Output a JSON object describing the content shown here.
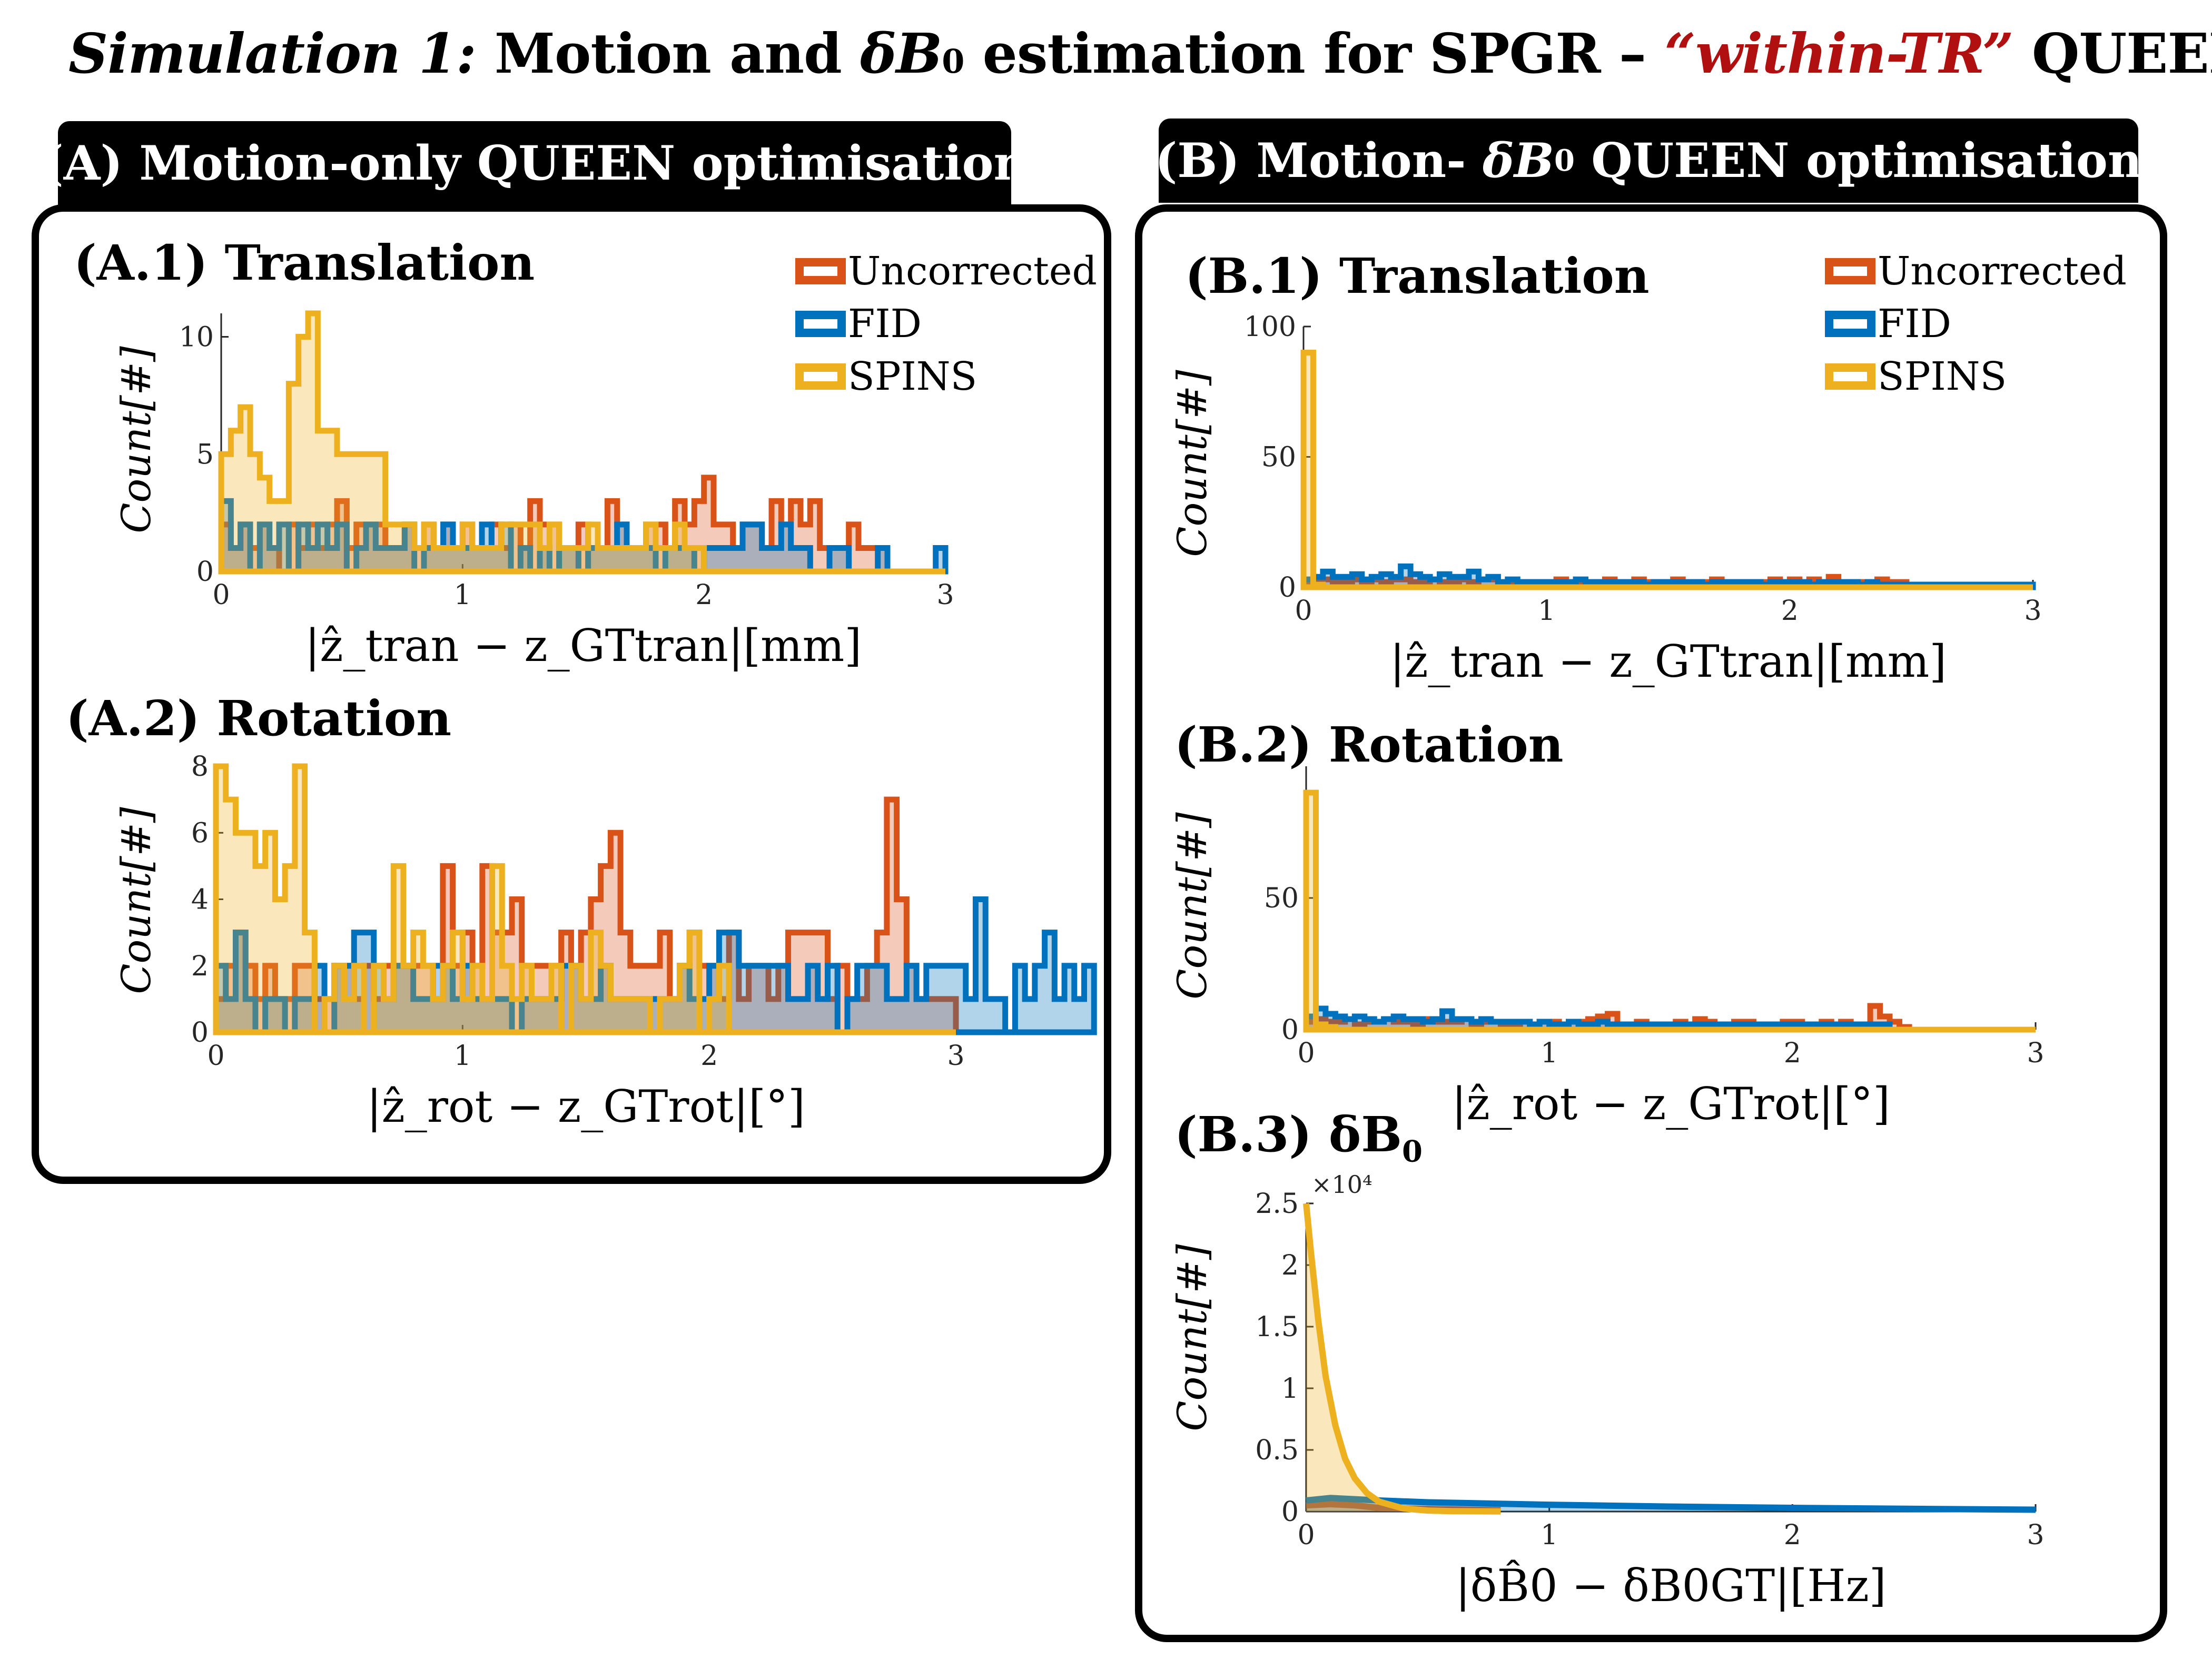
{
  "title": {
    "part1": "Simulation 1:",
    "part2": " Motion and ",
    "delta_b": "δB",
    "sub0": "0",
    "part3": " estimation for SPGR – ",
    "red": "“within-TR”",
    "part4": " QUEEN"
  },
  "tabs": {
    "a": "(A) Motion-only QUEEN optimisation",
    "b_pre": "(B) Motion- ",
    "b_db": "δB",
    "b_sub": "0",
    "b_post": " QUEEN optimisation"
  },
  "subtitles": {
    "a1": "(A.1) Translation",
    "a2": "(A.2) Rotation",
    "b1": "(B.1) Translation",
    "b2": "(B.2) Rotation",
    "b3_pre": "(B.3) δB",
    "b3_sub": "0"
  },
  "legend": [
    {
      "name": "Uncorrected",
      "color": "#d95319"
    },
    {
      "name": "FID",
      "color": "#0072bd"
    },
    {
      "name": "SPINS",
      "color": "#edb120"
    }
  ],
  "axis_labels": {
    "y_count": "Count[#]",
    "x_tran": "|ẑ_tran − z_GTtran|[mm]",
    "x_rot": "|ẑ_rot − z_GTrot|[°]",
    "x_b0": "|δB̂0 − δB0GT|[Hz]",
    "exp_label": "×10⁴"
  },
  "chart_data": [
    {
      "id": "a1",
      "type": "bar",
      "title": "(A.1) Translation",
      "xlabel": "|ẑ_tran − z_GTtran|[mm]",
      "ylabel": "Count[#]",
      "xlim": [
        0,
        3
      ],
      "ylim": [
        0,
        11
      ],
      "xticks": [
        0,
        1,
        2,
        3
      ],
      "yticks": [
        0,
        5,
        10
      ],
      "bin_width": 0.04,
      "series": [
        {
          "name": "Uncorrected",
          "values": [
            2,
            1,
            2,
            1,
            2,
            1,
            0,
            2,
            1,
            2,
            1,
            2,
            3,
            1,
            2,
            2,
            2,
            1,
            1,
            2,
            1,
            2,
            1,
            2,
            1,
            2,
            1,
            1,
            2,
            1,
            2,
            1,
            3,
            2,
            2,
            1,
            1,
            2,
            1,
            1,
            3,
            2,
            1,
            1,
            2,
            2,
            1,
            3,
            2,
            3,
            4,
            2,
            2,
            1,
            2,
            2,
            1,
            3,
            2,
            3,
            2,
            3,
            1,
            1,
            1,
            2,
            1,
            1,
            1,
            0,
            0,
            0,
            0,
            0,
            0
          ]
        },
        {
          "name": "FID",
          "values": [
            3,
            1,
            2,
            0,
            2,
            1,
            2,
            0,
            2,
            1,
            2,
            1,
            2,
            0,
            1,
            2,
            1,
            1,
            1,
            2,
            0,
            1,
            1,
            2,
            1,
            1,
            1,
            2,
            1,
            2,
            0,
            1,
            0,
            1,
            0,
            1,
            1,
            0,
            1,
            1,
            1,
            2,
            1,
            1,
            1,
            0,
            1,
            1,
            1,
            0,
            1,
            1,
            1,
            1,
            2,
            2,
            1,
            1,
            2,
            1,
            1,
            0,
            0,
            1,
            1,
            0,
            0,
            0,
            1,
            0,
            0,
            0,
            0,
            0,
            1
          ]
        },
        {
          "name": "SPINS",
          "values": [
            5,
            6,
            7,
            5,
            4,
            3,
            3,
            8,
            10,
            11,
            6,
            6,
            5,
            5,
            5,
            5,
            5,
            2,
            2,
            2,
            1,
            2,
            1,
            1,
            1,
            2,
            1,
            1,
            1,
            2,
            2,
            2,
            2,
            1,
            2,
            1,
            1,
            1,
            2,
            1,
            1,
            1,
            1,
            1,
            2,
            1,
            1,
            2,
            1,
            1,
            0,
            0,
            0,
            0,
            0,
            0,
            0,
            0,
            0,
            0,
            0,
            0,
            0,
            0,
            0,
            0,
            0,
            0,
            0,
            0,
            0,
            0,
            0,
            0,
            0
          ]
        }
      ]
    },
    {
      "id": "a2",
      "type": "bar",
      "title": "(A.2) Rotation",
      "xlabel": "|ẑ_rot − z_GTrot|[°]",
      "ylabel": "Count[#]",
      "xlim": [
        0,
        3
      ],
      "ylim": [
        0,
        8
      ],
      "xticks": [
        0,
        1,
        2,
        3
      ],
      "yticks": [
        0,
        2,
        4,
        6,
        8
      ],
      "bin_width": 0.04,
      "series": [
        {
          "name": "Uncorrected",
          "values": [
            1,
            2,
            3,
            2,
            1,
            2,
            1,
            1,
            2,
            2,
            1,
            1,
            2,
            2,
            1,
            2,
            1,
            2,
            2,
            2,
            2,
            2,
            1,
            5,
            2,
            3,
            2,
            5,
            3,
            3,
            4,
            2,
            2,
            2,
            2,
            3,
            2,
            3,
            4,
            5,
            6,
            3,
            2,
            2,
            2,
            3,
            1,
            2,
            3,
            2,
            2,
            1,
            3,
            1,
            2,
            2,
            1,
            2,
            3,
            3,
            3,
            3,
            1,
            2,
            1,
            1,
            2,
            3,
            7,
            4,
            2,
            1,
            1,
            1,
            1
          ]
        },
        {
          "name": "FID",
          "values": [
            2,
            1,
            3,
            1,
            0,
            1,
            1,
            0,
            1,
            1,
            2,
            0,
            2,
            2,
            3,
            3,
            2,
            1,
            2,
            2,
            1,
            1,
            2,
            2,
            1,
            2,
            1,
            1,
            1,
            1,
            0,
            1,
            1,
            1,
            1,
            2,
            2,
            1,
            1,
            2,
            1,
            1,
            1,
            1,
            1,
            1,
            1,
            2,
            1,
            1,
            2,
            3,
            3,
            2,
            2,
            2,
            2,
            2,
            1,
            1,
            2,
            1,
            2,
            0,
            1,
            2,
            2,
            2,
            1,
            1,
            2,
            1,
            2,
            2,
            2,
            2,
            1,
            4,
            1,
            1,
            0,
            2,
            1,
            2,
            3,
            1,
            2,
            1,
            2
          ]
        },
        {
          "name": "SPINS",
          "values": [
            8,
            7,
            6,
            6,
            5,
            6,
            4,
            5,
            8,
            3,
            0,
            1,
            2,
            1,
            2,
            0,
            2,
            1,
            5,
            2,
            3,
            2,
            1,
            2,
            3,
            1,
            2,
            1,
            5,
            2,
            1,
            2,
            1,
            1,
            2,
            0,
            2,
            1,
            3,
            2,
            1,
            1,
            1,
            1,
            0,
            1,
            1,
            2,
            3,
            0,
            1,
            2,
            0,
            0,
            0,
            0,
            0,
            0,
            0,
            0,
            0,
            0,
            0,
            0,
            0,
            0,
            0,
            0,
            0,
            0,
            0,
            0,
            0,
            0,
            0
          ]
        }
      ]
    },
    {
      "id": "b1",
      "type": "bar",
      "title": "(B.1) Translation",
      "xlabel": "|ẑ_tran − z_GTtran|[mm]",
      "ylabel": "Count[#]",
      "xlim": [
        0,
        3
      ],
      "ylim": [
        0,
        100
      ],
      "xticks": [
        0,
        1,
        2,
        3
      ],
      "yticks": [
        0,
        50,
        100
      ],
      "bin_width": 0.04,
      "series": [
        {
          "name": "Uncorrected",
          "values": [
            2,
            3,
            3,
            2,
            2,
            3,
            2,
            3,
            2,
            3,
            3,
            2,
            2,
            3,
            2,
            2,
            3,
            2,
            3,
            3,
            2,
            2,
            2,
            2,
            2,
            2,
            3,
            2,
            2,
            2,
            2,
            3,
            2,
            2,
            3,
            2,
            2,
            2,
            3,
            2,
            2,
            2,
            3,
            2,
            2,
            2,
            2,
            2,
            3,
            2,
            3,
            2,
            3,
            2,
            4,
            2,
            2,
            2,
            2,
            3,
            2,
            2,
            0,
            0,
            0,
            0,
            0,
            0,
            0,
            0,
            0,
            0,
            0,
            0,
            0
          ]
        },
        {
          "name": "FID",
          "values": [
            3,
            4,
            6,
            4,
            4,
            5,
            3,
            4,
            5,
            4,
            8,
            5,
            4,
            3,
            5,
            4,
            4,
            6,
            3,
            4,
            2,
            3,
            2,
            2,
            2,
            2,
            2,
            2,
            3,
            2,
            2,
            2,
            2,
            2,
            2,
            1,
            2,
            2,
            2,
            2,
            2,
            1,
            2,
            2,
            2,
            2,
            2,
            1,
            2,
            2,
            2,
            2,
            1,
            2,
            2,
            2,
            2,
            1,
            2,
            1,
            1,
            1,
            1,
            1,
            1,
            1,
            1,
            1,
            1,
            1,
            1,
            1,
            1,
            1,
            1
          ]
        },
        {
          "name": "SPINS",
          "values": [
            90,
            1,
            0,
            0,
            0,
            0,
            0,
            0,
            0,
            0,
            0,
            0,
            0,
            0,
            0,
            0,
            0,
            0,
            0,
            0,
            0,
            0,
            0,
            0,
            0,
            0,
            0,
            0,
            0,
            0,
            0,
            0,
            0,
            0,
            0,
            0,
            0,
            0,
            0,
            0,
            0,
            0,
            0,
            0,
            0,
            0,
            0,
            0,
            0,
            0,
            0,
            0,
            0,
            0,
            0,
            0,
            0,
            0,
            0,
            0,
            0,
            0,
            0,
            0,
            0,
            0,
            0,
            0,
            0,
            0,
            0,
            0,
            0,
            0,
            0
          ]
        }
      ]
    },
    {
      "id": "b2",
      "type": "bar",
      "title": "(B.2) Rotation",
      "xlabel": "|ẑ_rot − z_GTrot|[°]",
      "ylabel": "Count[#]",
      "xlim": [
        0,
        3
      ],
      "ylim": [
        0,
        100
      ],
      "xticks": [
        0,
        1,
        2,
        3
      ],
      "yticks": [
        0,
        50
      ],
      "bin_width": 0.04,
      "series": [
        {
          "name": "Uncorrected",
          "values": [
            3,
            4,
            3,
            3,
            4,
            2,
            3,
            3,
            4,
            3,
            3,
            2,
            4,
            3,
            3,
            3,
            4,
            2,
            3,
            3,
            2,
            2,
            3,
            2,
            3,
            3,
            2,
            3,
            3,
            4,
            5,
            6,
            2,
            2,
            3,
            2,
            2,
            2,
            3,
            2,
            4,
            3,
            2,
            2,
            3,
            3,
            2,
            2,
            2,
            3,
            3,
            2,
            2,
            3,
            2,
            3,
            2,
            2,
            9,
            5,
            3,
            1,
            0,
            0,
            0,
            0,
            0,
            0,
            0,
            0,
            0,
            0,
            0,
            0,
            0
          ]
        },
        {
          "name": "FID",
          "values": [
            5,
            8,
            6,
            5,
            4,
            5,
            4,
            3,
            4,
            5,
            4,
            4,
            3,
            4,
            7,
            4,
            4,
            3,
            4,
            3,
            3,
            3,
            3,
            2,
            3,
            2,
            2,
            3,
            2,
            2,
            3,
            2,
            2,
            2,
            2,
            2,
            2,
            2,
            2,
            2,
            2,
            2,
            2,
            2,
            2,
            2,
            2,
            2,
            2,
            2,
            2,
            2,
            2,
            2,
            2,
            2,
            2,
            2,
            2,
            2,
            0,
            0,
            0,
            0,
            0,
            0,
            0,
            0,
            0,
            0,
            0,
            0,
            0,
            0,
            0
          ]
        },
        {
          "name": "SPINS",
          "values": [
            90,
            2,
            1,
            0,
            0,
            0,
            0,
            0,
            0,
            0,
            0,
            0,
            0,
            0,
            0,
            0,
            0,
            0,
            0,
            0,
            0,
            0,
            0,
            0,
            0,
            0,
            0,
            0,
            0,
            0,
            0,
            0,
            0,
            0,
            0,
            0,
            0,
            0,
            0,
            0,
            0,
            0,
            0,
            0,
            0,
            0,
            0,
            0,
            0,
            0,
            0,
            0,
            0,
            0,
            0,
            0,
            0,
            0,
            0,
            0,
            0,
            0,
            0,
            0,
            0,
            0,
            0,
            0,
            0,
            0,
            0,
            0,
            0,
            0,
            0
          ]
        }
      ]
    },
    {
      "id": "b3",
      "type": "area",
      "title": "(B.3) δB0",
      "xlabel": "|δB̂0 − δB0GT|[Hz]",
      "ylabel": "Count[#]",
      "xlim": [
        0,
        3
      ],
      "ylim": [
        0,
        25000
      ],
      "xticks": [
        0,
        1,
        2,
        3
      ],
      "yticks": [
        0,
        5000,
        10000,
        15000,
        20000,
        25000
      ],
      "ytick_labels": [
        "0",
        "0.5",
        "1",
        "1.5",
        "2",
        "2.5"
      ],
      "y_multiplier": "×10⁴",
      "series": [
        {
          "name": "Uncorrected",
          "x": [
            0,
            0.1,
            0.2,
            0.3,
            0.5,
            0.8
          ],
          "values": [
            500,
            600,
            500,
            300,
            200,
            100
          ]
        },
        {
          "name": "FID",
          "x": [
            0,
            0.1,
            0.2,
            0.3,
            0.5,
            1.0,
            1.5,
            2.0,
            2.5,
            3.0
          ],
          "values": [
            900,
            1100,
            1000,
            900,
            750,
            550,
            400,
            300,
            220,
            150
          ]
        },
        {
          "name": "SPINS",
          "x": [
            0,
            0.02,
            0.05,
            0.08,
            0.12,
            0.16,
            0.2,
            0.25,
            0.3,
            0.4,
            0.5,
            0.6,
            0.8
          ],
          "values": [
            25000,
            21000,
            15500,
            11000,
            7000,
            4300,
            2700,
            1500,
            800,
            250,
            80,
            30,
            10
          ]
        }
      ]
    }
  ]
}
